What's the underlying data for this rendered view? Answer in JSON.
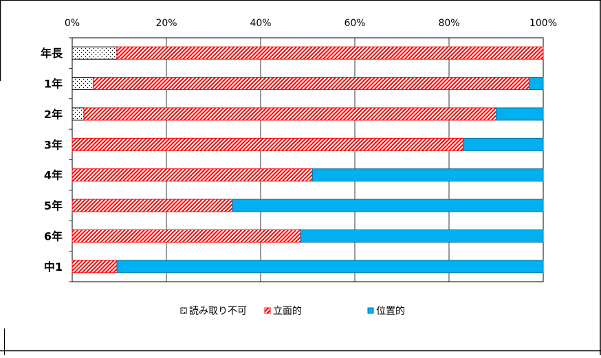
{
  "chart_data": {
    "type": "bar",
    "orientation": "horizontal",
    "stacked": "percent",
    "categories": [
      "年長",
      "1年",
      "2年",
      "3年",
      "4年",
      "5年",
      "6年",
      "中1"
    ],
    "series": [
      {
        "name": "読み取り不可",
        "values": [
          9.5,
          4.5,
          2.5,
          0,
          0,
          0,
          0,
          0
        ],
        "pattern": "dots",
        "color": "#ffffff"
      },
      {
        "name": "立面的",
        "values": [
          90.5,
          92.5,
          87.5,
          83,
          51,
          34,
          48.5,
          9.5
        ],
        "pattern": "hatch",
        "color": "#ff0000"
      },
      {
        "name": "位置的",
        "values": [
          0,
          3,
          10,
          17,
          49,
          66,
          51.5,
          90.5
        ],
        "pattern": "solid",
        "color": "#00b0f0"
      }
    ],
    "xlim": [
      0,
      100
    ],
    "x_ticks": [
      "0%",
      "20%",
      "40%",
      "60%",
      "80%",
      "100%"
    ],
    "grid": "vertical",
    "legend_position": "bottom"
  }
}
